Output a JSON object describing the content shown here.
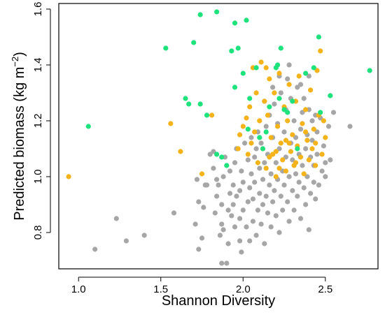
{
  "chart_data": {
    "type": "scatter",
    "xlabel": "Shannon Diversity",
    "ylabel_main": "Predicted biomass (kg m",
    "ylabel_sup": "−2",
    "ylabel_close": ")",
    "xlim": [
      0.88,
      2.82
    ],
    "ylim": [
      0.67,
      1.62
    ],
    "x_ticks": [
      1.0,
      1.5,
      2.0,
      2.5
    ],
    "x_tick_labels": [
      "1.0",
      "1.5",
      "2.0",
      "2.5"
    ],
    "y_ticks": [
      0.8,
      1.0,
      1.2,
      1.4,
      1.6
    ],
    "y_tick_labels": [
      "0.8",
      "1.0",
      "1.2",
      "1.4",
      "1.6"
    ],
    "grid": false,
    "legend": "none",
    "colors": {
      "gray": "#a6a6a6",
      "orange": "#f5b31a",
      "green": "#1ee37d"
    },
    "series": [
      {
        "color_key": "gray",
        "points": [
          [
            1.1,
            0.74
          ],
          [
            1.23,
            0.85
          ],
          [
            1.29,
            0.77
          ],
          [
            1.4,
            0.79
          ],
          [
            1.58,
            0.87
          ],
          [
            1.71,
            0.83
          ],
          [
            1.73,
            0.74
          ],
          [
            1.73,
            0.91
          ],
          [
            1.72,
            0.99
          ],
          [
            1.75,
            0.78
          ],
          [
            1.76,
            0.89
          ],
          [
            1.77,
            0.97
          ],
          [
            1.82,
            1.03
          ],
          [
            1.82,
            1.09
          ],
          [
            1.84,
            0.93
          ],
          [
            1.84,
            0.99
          ],
          [
            1.85,
            0.97
          ],
          [
            1.86,
            0.79
          ],
          [
            1.87,
            0.69
          ],
          [
            1.87,
            0.83
          ],
          [
            1.87,
            0.9
          ],
          [
            1.88,
            1.0
          ],
          [
            1.89,
            1.07
          ],
          [
            1.9,
            0.69
          ],
          [
            1.91,
            0.76
          ],
          [
            1.91,
            0.88
          ],
          [
            1.92,
            0.94
          ],
          [
            1.92,
            1.02
          ],
          [
            1.93,
            0.86
          ],
          [
            1.94,
            0.9
          ],
          [
            1.94,
            0.97
          ],
          [
            1.95,
            0.82
          ],
          [
            1.95,
            1.05
          ],
          [
            1.96,
            0.93
          ],
          [
            1.96,
            1.1
          ],
          [
            1.98,
            0.77
          ],
          [
            1.98,
            0.85
          ],
          [
            1.98,
            0.95
          ],
          [
            1.99,
            1.02
          ],
          [
            1.99,
            0.73
          ],
          [
            2.0,
            0.88
          ],
          [
            2.0,
            0.98
          ],
          [
            2.01,
            1.12
          ],
          [
            2.02,
            0.82
          ],
          [
            2.03,
            0.91
          ],
          [
            2.03,
            1.06
          ],
          [
            2.04,
            0.96
          ],
          [
            2.04,
            0.77
          ],
          [
            2.05,
            1.01
          ],
          [
            2.05,
            1.14
          ],
          [
            2.06,
            0.84
          ],
          [
            2.06,
            0.92
          ],
          [
            2.07,
            0.98
          ],
          [
            2.07,
            1.07
          ],
          [
            2.08,
            0.79
          ],
          [
            2.08,
            1.1
          ],
          [
            2.09,
            0.88
          ],
          [
            2.09,
            1.16
          ],
          [
            2.1,
            0.94
          ],
          [
            2.1,
            1.03
          ],
          [
            2.11,
            0.83
          ],
          [
            2.11,
            1.12
          ],
          [
            2.12,
            0.9
          ],
          [
            2.12,
            0.99
          ],
          [
            2.13,
            1.05
          ],
          [
            2.13,
            0.76
          ],
          [
            2.14,
            0.93
          ],
          [
            2.14,
            1.18
          ],
          [
            2.15,
            0.87
          ],
          [
            2.15,
            1.08
          ],
          [
            2.16,
            0.97
          ],
          [
            2.16,
            1.22
          ],
          [
            2.17,
            0.82
          ],
          [
            2.17,
            1.01
          ],
          [
            2.18,
            0.91
          ],
          [
            2.18,
            1.14
          ],
          [
            2.19,
            0.95
          ],
          [
            2.19,
            1.26
          ],
          [
            2.2,
            0.86
          ],
          [
            2.2,
            1.05
          ],
          [
            2.21,
            0.99
          ],
          [
            2.21,
            1.19
          ],
          [
            2.22,
            0.8
          ],
          [
            2.22,
            1.1
          ],
          [
            2.23,
            0.93
          ],
          [
            2.23,
            1.3
          ],
          [
            2.24,
            1.02
          ],
          [
            2.24,
            0.88
          ],
          [
            2.25,
            1.16
          ],
          [
            2.25,
            0.97
          ],
          [
            2.26,
            1.07
          ],
          [
            2.26,
            1.24
          ],
          [
            2.27,
            0.91
          ],
          [
            2.27,
            1.35
          ],
          [
            2.28,
            1.0
          ],
          [
            2.28,
            0.84
          ],
          [
            2.29,
            1.12
          ],
          [
            2.29,
            1.28
          ],
          [
            2.3,
            0.95
          ],
          [
            2.3,
            1.06
          ],
          [
            2.31,
            1.2
          ],
          [
            2.31,
            0.88
          ],
          [
            2.32,
            1.01
          ],
          [
            2.32,
            1.14
          ],
          [
            2.33,
            0.93
          ],
          [
            2.33,
            1.32
          ],
          [
            2.34,
            1.08
          ],
          [
            2.34,
            0.98
          ],
          [
            2.35,
            1.17
          ],
          [
            2.35,
            0.85
          ],
          [
            2.36,
            1.04
          ],
          [
            2.36,
            1.23
          ],
          [
            2.37,
            0.96
          ],
          [
            2.37,
            1.28
          ],
          [
            2.38,
            1.1
          ],
          [
            2.38,
            0.9
          ],
          [
            2.39,
            1.0
          ],
          [
            2.39,
            1.15
          ],
          [
            2.4,
            1.24
          ],
          [
            2.4,
            0.81
          ],
          [
            2.41,
            1.07
          ],
          [
            2.41,
            0.94
          ],
          [
            2.42,
            1.2
          ],
          [
            2.42,
            1.13
          ],
          [
            2.43,
            0.98
          ],
          [
            2.43,
            1.04
          ],
          [
            2.44,
            1.22
          ],
          [
            2.44,
            0.92
          ],
          [
            2.45,
            1.16
          ],
          [
            2.45,
            1.08
          ],
          [
            2.46,
            0.97
          ],
          [
            2.47,
            1.21
          ],
          [
            2.48,
            1.02
          ],
          [
            2.49,
            1.11
          ],
          [
            2.5,
            1.05
          ],
          [
            2.5,
            1.0
          ],
          [
            2.52,
            1.18
          ],
          [
            2.53,
            1.06
          ],
          [
            2.55,
            1.23
          ],
          [
            2.65,
            1.18
          ],
          [
            1.8,
            1.08
          ],
          [
            1.78,
            0.97
          ],
          [
            1.83,
            0.87
          ],
          [
            1.88,
            0.81
          ],
          [
            2.13,
            1.27
          ],
          [
            2.18,
            1.32
          ],
          [
            2.22,
            1.36
          ],
          [
            2.28,
            1.4
          ],
          [
            2.35,
            1.33
          ],
          [
            2.4,
            1.36
          ]
        ]
      },
      {
        "color_key": "orange",
        "points": [
          [
            0.94,
            1.0
          ],
          [
            1.56,
            1.19
          ],
          [
            1.62,
            1.09
          ],
          [
            1.75,
            1.01
          ],
          [
            1.81,
            1.22
          ],
          [
            1.97,
            1.1
          ],
          [
            1.98,
            1.15
          ],
          [
            2.0,
            1.18
          ],
          [
            2.02,
            1.21
          ],
          [
            2.03,
            1.08
          ],
          [
            2.04,
            1.25
          ],
          [
            2.05,
            1.12
          ],
          [
            2.06,
            1.39
          ],
          [
            2.07,
            1.16
          ],
          [
            2.08,
            1.3
          ],
          [
            2.09,
            1.05
          ],
          [
            2.1,
            1.2
          ],
          [
            2.11,
            1.41
          ],
          [
            2.12,
            1.1
          ],
          [
            2.13,
            1.27
          ],
          [
            2.14,
            1.03
          ],
          [
            2.15,
            1.22
          ],
          [
            2.16,
            1.35
          ],
          [
            2.17,
            1.14
          ],
          [
            2.18,
            1.08
          ],
          [
            2.19,
            1.3
          ],
          [
            2.2,
            1.0
          ],
          [
            2.21,
            1.18
          ],
          [
            2.22,
            1.37
          ],
          [
            2.23,
            1.12
          ],
          [
            2.24,
            1.06
          ],
          [
            2.25,
            1.25
          ],
          [
            2.26,
            1.02
          ],
          [
            2.27,
            1.2
          ],
          [
            2.28,
            1.33
          ],
          [
            2.29,
            1.09
          ],
          [
            2.3,
            1.15
          ],
          [
            2.31,
            1.04
          ],
          [
            2.32,
            1.27
          ],
          [
            2.33,
            1.11
          ],
          [
            2.34,
            1.36
          ],
          [
            2.35,
            1.07
          ],
          [
            2.36,
            1.19
          ],
          [
            2.37,
            1.01
          ],
          [
            2.38,
            1.24
          ],
          [
            2.39,
            1.13
          ],
          [
            2.4,
            1.06
          ],
          [
            2.41,
            1.31
          ],
          [
            2.42,
            1.1
          ],
          [
            2.43,
            1.17
          ],
          [
            2.44,
            1.04
          ],
          [
            2.45,
            1.38
          ],
          [
            2.46,
            1.22
          ],
          [
            2.47,
            1.45
          ],
          [
            2.48,
            1.08
          ],
          [
            2.49,
            1.2
          ],
          [
            2.5,
            1.14
          ],
          [
            2.14,
            1.39
          ],
          [
            2.2,
            1.09
          ],
          [
            2.26,
            1.13
          ],
          [
            2.32,
            1.05
          ],
          [
            2.38,
            1.16
          ],
          [
            2.44,
            1.12
          ],
          [
            2.16,
            1.07
          ],
          [
            2.22,
            1.03
          ],
          [
            2.28,
            1.12
          ]
        ]
      },
      {
        "color_key": "green",
        "points": [
          [
            1.06,
            1.18
          ],
          [
            1.53,
            1.46
          ],
          [
            1.65,
            1.28
          ],
          [
            1.67,
            1.26
          ],
          [
            1.7,
            1.48
          ],
          [
            1.74,
            1.58
          ],
          [
            1.74,
            1.26
          ],
          [
            1.78,
            1.22
          ],
          [
            1.84,
            1.59
          ],
          [
            1.84,
            1.08
          ],
          [
            1.87,
            1.07
          ],
          [
            1.9,
            1.04
          ],
          [
            1.93,
            1.45
          ],
          [
            1.95,
            1.32
          ],
          [
            1.95,
            1.55
          ],
          [
            1.97,
            1.46
          ],
          [
            2.0,
            1.37
          ],
          [
            2.02,
            1.56
          ],
          [
            2.03,
            1.17
          ],
          [
            2.04,
            1.28
          ],
          [
            2.08,
            1.39
          ],
          [
            2.1,
            1.14
          ],
          [
            2.12,
            1.1
          ],
          [
            2.14,
            1.16
          ],
          [
            2.16,
            1.25
          ],
          [
            2.2,
            1.39
          ],
          [
            2.21,
            1.4
          ],
          [
            2.22,
            1.28
          ],
          [
            2.23,
            1.46
          ],
          [
            2.25,
            1.24
          ],
          [
            2.27,
            1.23
          ],
          [
            2.3,
            1.27
          ],
          [
            2.33,
            1.1
          ],
          [
            2.38,
            1.37
          ],
          [
            2.43,
            1.39
          ],
          [
            2.46,
            1.5
          ],
          [
            2.47,
            1.23
          ],
          [
            2.53,
            1.29
          ],
          [
            2.77,
            1.38
          ]
        ]
      }
    ]
  }
}
